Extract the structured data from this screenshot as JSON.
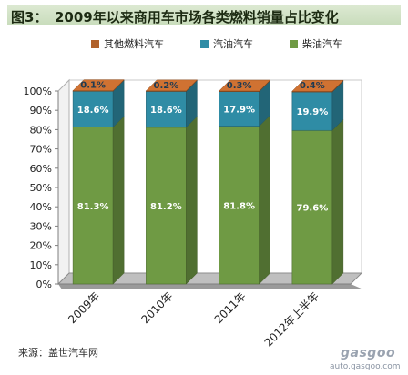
{
  "title": {
    "label": "图3：",
    "text": "2009年以来商用车市场各类燃料销量占比变化"
  },
  "legend": [
    {
      "name": "其他燃料汽车",
      "color": "#b0612a"
    },
    {
      "name": "汽油汽车",
      "color": "#2f8ca5"
    },
    {
      "name": "柴油汽车",
      "color": "#6f9a44"
    }
  ],
  "chart_data": {
    "type": "bar",
    "stacked": true,
    "three_d": true,
    "categories": [
      "2009年",
      "2010年",
      "2011年",
      "2012年上半年"
    ],
    "series": [
      {
        "name": "柴油汽车",
        "values": [
          81.3,
          81.2,
          81.8,
          79.6
        ],
        "labels": [
          "81.3%",
          "81.2%",
          "81.8%",
          "79.6%"
        ],
        "color": "#6f9a44"
      },
      {
        "name": "汽油汽车",
        "values": [
          18.6,
          18.6,
          17.9,
          19.9
        ],
        "labels": [
          "18.6%",
          "18.6%",
          "17.9%",
          "19.9%"
        ],
        "color": "#2f8ca5"
      },
      {
        "name": "其他燃料汽车",
        "values": [
          0.1,
          0.2,
          0.3,
          0.4
        ],
        "labels": [
          "0.1%",
          "0.2%",
          "0.3%",
          "0.4%"
        ],
        "color": "#b0612a"
      }
    ],
    "ylim": [
      0,
      100
    ],
    "yticks": [
      "0%",
      "10%",
      "20%",
      "30%",
      "40%",
      "50%",
      "60%",
      "70%",
      "80%",
      "90%",
      "100%"
    ],
    "grid": false,
    "legend_position": "top"
  },
  "source": "来源：盖世汽车网",
  "watermark": {
    "brand": "gasgoo",
    "url": "auto.gasgoo.com"
  }
}
